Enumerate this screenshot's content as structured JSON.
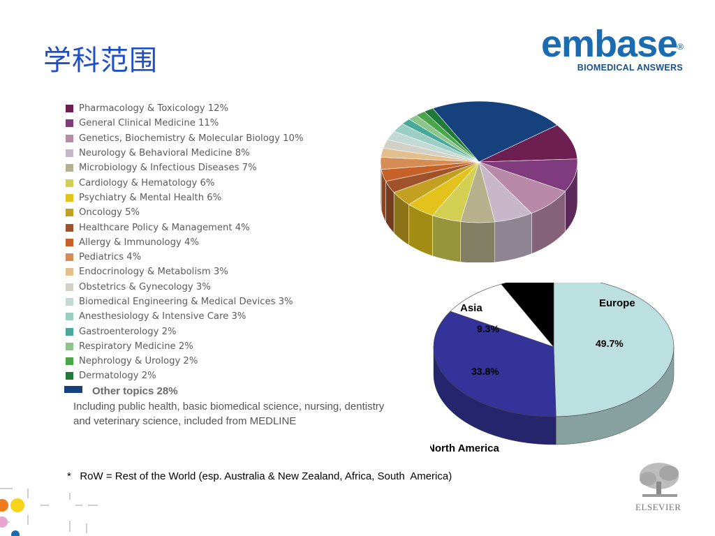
{
  "page": {
    "title": "学科范围"
  },
  "logo": {
    "word": "embase",
    "reg": "®",
    "tagline": "BIOMEDICAL ANSWERS"
  },
  "chart_data": [
    {
      "type": "pie",
      "style": "3d",
      "categories": [
        "Pharmacology & Toxicology 12%",
        "General Clinical Medicine 11%",
        "Genetics, Biochemistry & Molecular Biology 10%",
        "Neurology & Behavioral Medicine 8%",
        "Microbiology & Infectious Diseases 7%",
        "Cardiology & Hematology 6%",
        "Psychiatry & Mental Health 6%",
        "Oncology 5%",
        "Healthcare Policy & Management 4%",
        "Allergy & Immunology 4%",
        "Pediatrics 4%",
        "Endocrinology & Metabolism 3%",
        "Obstetrics & Gynecology 3%",
        "Biomedical Engineering & Medical Devices 3%",
        "Anesthesiology & Intensive Care 3%",
        "Gastroenterology 2%",
        "Respiratory Medicine 2%",
        "Nephrology & Urology 2%",
        "Dermatology 2%"
      ],
      "values": [
        12,
        11,
        10,
        8,
        7,
        6,
        6,
        5,
        4,
        4,
        4,
        3,
        3,
        3,
        3,
        2,
        2,
        2,
        2
      ],
      "colors": [
        "#6e1f52",
        "#7f3b7e",
        "#b88aa8",
        "#c7b7c9",
        "#b6b08c",
        "#d2cf52",
        "#e2c21b",
        "#c3a020",
        "#a0532a",
        "#c6612a",
        "#d58d55",
        "#e2c08e",
        "#d3d1c6",
        "#c3d9d4",
        "#9ccfc3",
        "#48a89a",
        "#8cc48c",
        "#4aa64a",
        "#1f7a37"
      ],
      "other": {
        "label": "Other topics 28%",
        "value": 28,
        "color": "#15417c",
        "description": "Including public health, basic biomedical science, nursing, dentistry and veterinary science, included from MEDLINE"
      },
      "legend": "left"
    },
    {
      "type": "pie",
      "style": "3d",
      "categories": [
        "Europe",
        "North America",
        "Asia",
        "RoW *"
      ],
      "values": [
        49.7,
        33.8,
        9.3,
        7.2
      ],
      "data_labels": [
        "49.7%",
        "33.8%",
        "9.3%",
        ""
      ],
      "colors": [
        "#bcdfe0",
        "#343399",
        "#ffffff",
        "#000000"
      ]
    }
  ],
  "footnote": "*   RoW = Rest of the World (esp. Australia & New Zealand, Africa, South  America)",
  "publisher": {
    "name": "ELSEVIER"
  }
}
